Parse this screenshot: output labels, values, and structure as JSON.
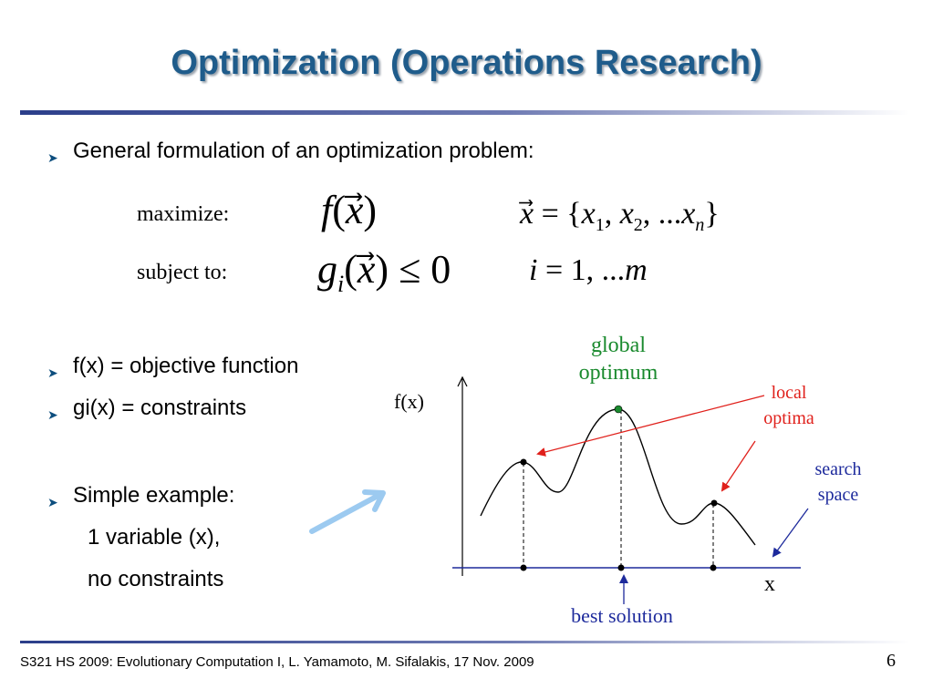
{
  "slide": {
    "title": "Optimization (Operations Research)",
    "page_number": "6",
    "footer": "S321 HS 2009: Evolutionary Computation I, L. Yamamoto, M. Sifalakis, 17 Nov. 2009"
  },
  "bullets": {
    "formulation": "General formulation of an optimization problem:",
    "objective": "f(x) = objective function",
    "constraints": "gi(x) = constraints",
    "example": "Simple example:",
    "example_line1": "1 variable (x),",
    "example_line2": "no constraints"
  },
  "formulation": {
    "maximize_label": "maximize:",
    "subject_label": "subject to:",
    "objective_expr": "f(x⃗)",
    "vector_def": "x⃗ = {x1, x2, ...xn}",
    "constraint_expr": "gi(x⃗) ≤ 0",
    "index_def": "i = 1, ...m"
  },
  "plot": {
    "y_label": "f(x)",
    "x_label": "x",
    "global_label_1": "global",
    "global_label_2": "optimum",
    "local_label_1": "local",
    "local_label_2": "optima",
    "search_label_1": "search",
    "search_label_2": "space",
    "best_label": "best solution"
  },
  "colors": {
    "title": "#1f5c8b",
    "global": "#1a8a2e",
    "local": "#e0201b",
    "search": "#1d2a9c",
    "best": "#1d2a9c",
    "pointer_arrow": "#9ccaf0"
  }
}
